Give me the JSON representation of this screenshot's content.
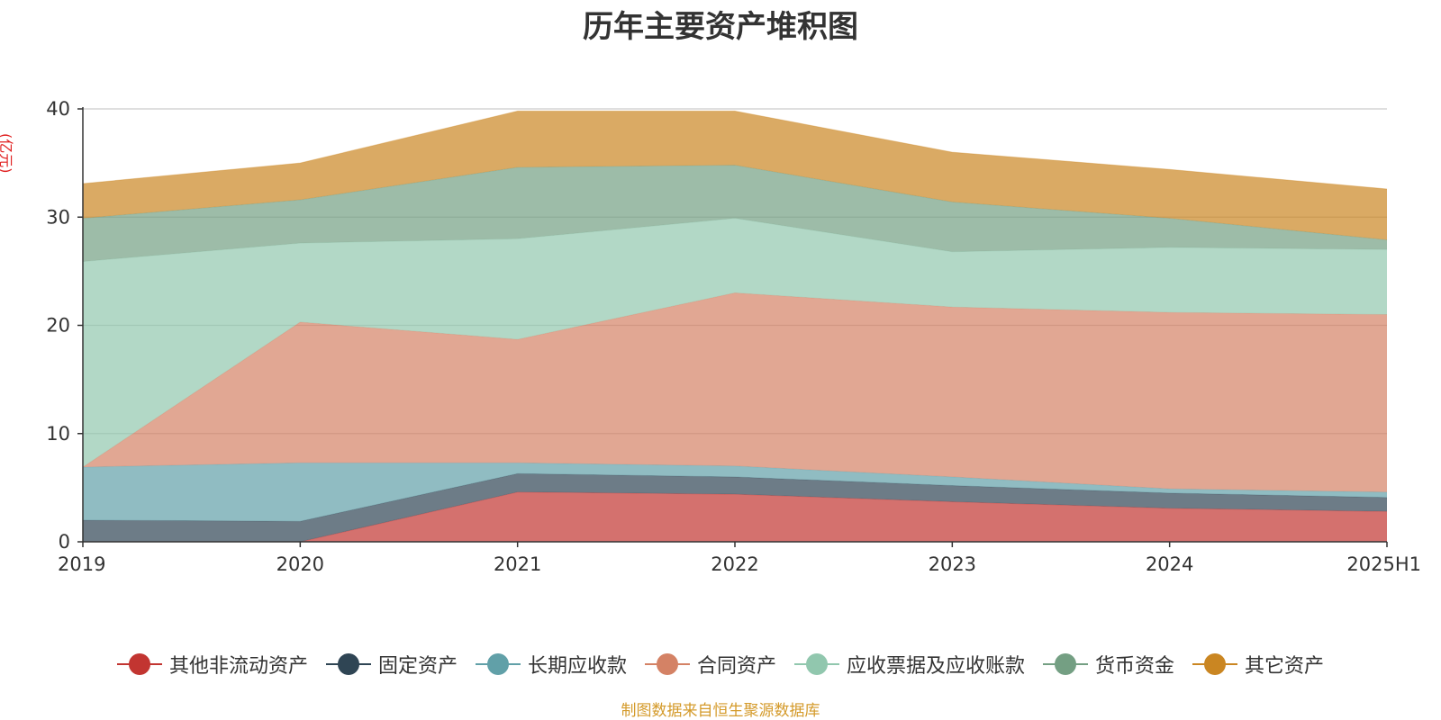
{
  "title": "历年主要资产堆积图",
  "source": "制图数据来自恒生聚源数据库",
  "chart_data": {
    "type": "area",
    "stacked": true,
    "title": "历年主要资产堆积图",
    "ylabel": "(亿元)",
    "xlabel": "",
    "categories": [
      "2019",
      "2020",
      "2021",
      "2022",
      "2023",
      "2024",
      "2025H1"
    ],
    "ylim": [
      0,
      40
    ],
    "yticks": [
      0,
      10,
      20,
      30,
      40
    ],
    "grid": true,
    "legend_position": "bottom",
    "series": [
      {
        "name": "其他非流动资产",
        "color": "#c23531",
        "values": [
          0,
          0,
          4.6,
          4.4,
          3.7,
          3.1,
          2.8
        ]
      },
      {
        "name": "固定资产",
        "color": "#2f4554",
        "values": [
          2.0,
          1.9,
          1.7,
          1.6,
          1.5,
          1.4,
          1.3
        ]
      },
      {
        "name": "长期应收款",
        "color": "#61a0a8",
        "values": [
          4.9,
          5.4,
          1.0,
          1.0,
          0.8,
          0.4,
          0.5
        ]
      },
      {
        "name": "合同资产",
        "color": "#d48265",
        "values": [
          0,
          13.0,
          11.4,
          16.0,
          15.7,
          16.3,
          16.4
        ]
      },
      {
        "name": "应收票据及应收账款",
        "color": "#91c7ae",
        "values": [
          19.0,
          7.3,
          9.3,
          6.9,
          5.1,
          6.0,
          6.0
        ]
      },
      {
        "name": "货币资金",
        "color": "#749f83",
        "values": [
          4.0,
          4.0,
          6.6,
          4.9,
          4.6,
          2.7,
          0.9
        ]
      },
      {
        "name": "其它资产",
        "color": "#ca8622",
        "values": [
          3.2,
          3.4,
          5.2,
          5.0,
          4.6,
          4.5,
          4.7
        ]
      }
    ]
  }
}
